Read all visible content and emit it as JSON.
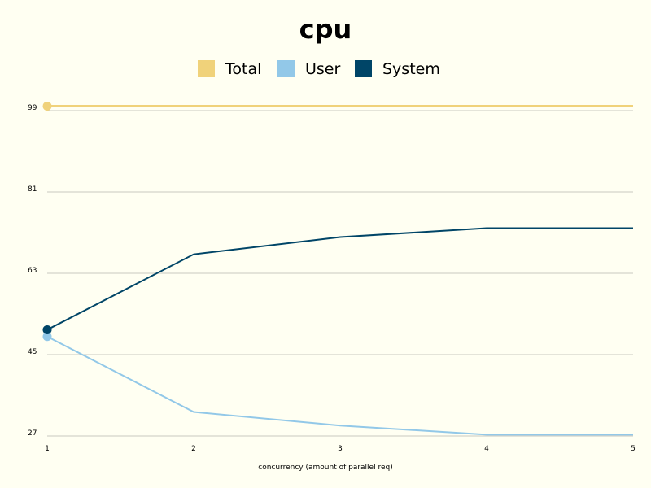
{
  "chart_data": {
    "type": "line",
    "title": "cpu",
    "xlabel": "concurrency (amount of parallel req)",
    "ylabel": "",
    "x": [
      1,
      2,
      3,
      4,
      5
    ],
    "x_ticks": [
      "1",
      "2",
      "3",
      "4",
      "5"
    ],
    "y_ticks": [
      "27",
      "45",
      "63",
      "81",
      "99"
    ],
    "ylim": [
      27,
      99
    ],
    "grid": true,
    "legend_position": "top-center",
    "series": [
      {
        "name": "Total",
        "color": "#f0d27a",
        "values": [
          100,
          100,
          100,
          100,
          100
        ]
      },
      {
        "name": "User",
        "color": "#92c8e8",
        "values": [
          49,
          32.3,
          29.3,
          27.3,
          27.3
        ]
      },
      {
        "name": "System",
        "color": "#004567",
        "values": [
          50.5,
          67.2,
          71,
          73,
          73
        ]
      }
    ]
  }
}
